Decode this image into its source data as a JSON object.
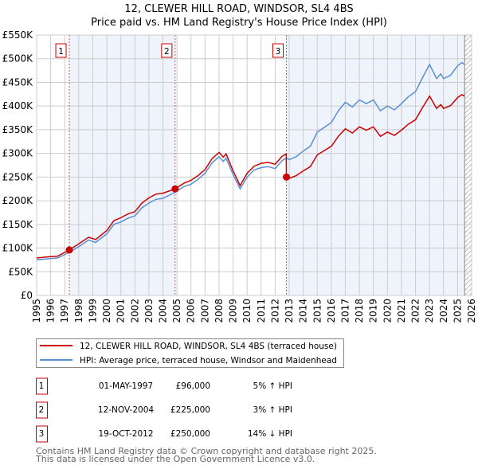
{
  "chart_data": {
    "type": "line",
    "title": "12, CLEWER HILL ROAD, WINDSOR, SL4 4BS",
    "subtitle": "Price paid vs. HM Land Registry's House Price Index (HPI)",
    "xlabel": "",
    "ylabel": "",
    "xlim": [
      1995,
      2026
    ],
    "ylim": [
      0,
      550000
    ],
    "grid": true,
    "y_ticks": [
      0,
      50000,
      100000,
      150000,
      200000,
      250000,
      300000,
      350000,
      400000,
      450000,
      500000,
      550000
    ],
    "y_tick_labels": [
      "£0",
      "£50K",
      "£100K",
      "£150K",
      "£200K",
      "£250K",
      "£300K",
      "£350K",
      "£400K",
      "£450K",
      "£500K",
      "£550K"
    ],
    "x_ticks": [
      1995,
      1996,
      1997,
      1998,
      1999,
      2000,
      2001,
      2002,
      2003,
      2004,
      2005,
      2006,
      2007,
      2008,
      2009,
      2010,
      2011,
      2012,
      2013,
      2014,
      2015,
      2016,
      2017,
      2018,
      2019,
      2020,
      2021,
      2022,
      2023,
      2024,
      2025,
      2026
    ],
    "x_tick_labels": [
      "1995",
      "1996",
      "1997",
      "1998",
      "1999",
      "2000",
      "2001",
      "2002",
      "2003",
      "2004",
      "2005",
      "2006",
      "2007",
      "2008",
      "2009",
      "2010",
      "2011",
      "2012",
      "2013",
      "2014",
      "2015",
      "2016",
      "2017",
      "2018",
      "2019",
      "2020",
      "2021",
      "2022",
      "2023",
      "2024",
      "2025",
      "2026"
    ],
    "x": [
      1995,
      1996,
      1996.5,
      1997.33,
      1998,
      1998.7,
      1999.2,
      2000,
      2000.5,
      2001,
      2001.5,
      2002,
      2002.5,
      2003,
      2003.5,
      2004,
      2004.87,
      2005.5,
      2006,
      2006.5,
      2007,
      2007.5,
      2008,
      2008.3,
      2008.5,
      2009,
      2009.5,
      2010,
      2010.5,
      2011,
      2011.5,
      2012,
      2012.5,
      2012.79,
      2012.8,
      2013,
      2013.5,
      2014,
      2014.5,
      2015,
      2015.5,
      2016,
      2016.5,
      2017,
      2017.5,
      2018,
      2018.5,
      2019,
      2019.5,
      2020,
      2020.5,
      2021,
      2021.5,
      2022,
      2022.5,
      2023,
      2023.5,
      2023.8,
      2024,
      2024.5,
      2025,
      2025.3,
      2025.5
    ],
    "series": [
      {
        "name": "12, CLEWER HILL ROAD, WINDSOR, SL4 4BS (terraced house)",
        "color": "#cc0000",
        "values": [
          79000,
          82000,
          83000,
          96000,
          109000,
          123000,
          118000,
          137000,
          158000,
          164000,
          172000,
          177000,
          195000,
          206000,
          214000,
          216000,
          225000,
          237000,
          243000,
          253000,
          266000,
          289000,
          302000,
          292000,
          299000,
          263000,
          232000,
          258000,
          273000,
          279000,
          281000,
          277000,
          294000,
          299000,
          250000,
          247000,
          253000,
          263000,
          272000,
          297000,
          306000,
          315000,
          336000,
          352000,
          343000,
          356000,
          349000,
          356000,
          336000,
          345000,
          338000,
          349000,
          362000,
          371000,
          397000,
          421000,
          395000,
          403000,
          395000,
          401000,
          418000,
          424000,
          421000
        ]
      },
      {
        "name": "HPI: Average price, terraced house, Windsor and Maidenhead",
        "color": "#5b8fd4",
        "values": [
          75000,
          78000,
          79000,
          91000,
          103000,
          117000,
          112000,
          130000,
          150000,
          155000,
          163000,
          168000,
          185000,
          195000,
          203000,
          205000,
          218000,
          230000,
          235000,
          245000,
          258000,
          280000,
          293000,
          283000,
          290000,
          255000,
          225000,
          250000,
          265000,
          270000,
          272000,
          268000,
          285000,
          290000,
          290000,
          287000,
          293000,
          305000,
          315000,
          345000,
          355000,
          365000,
          390000,
          408000,
          398000,
          413000,
          405000,
          413000,
          390000,
          400000,
          392000,
          405000,
          420000,
          430000,
          460000,
          488000,
          458000,
          468000,
          458000,
          465000,
          485000,
          492000,
          488000
        ]
      }
    ],
    "sales": [
      {
        "label": "1",
        "x": 1997.33,
        "value": 96000,
        "date": "01-MAY-1997",
        "price": "£96,000",
        "delta": "5% ↑ HPI"
      },
      {
        "label": "2",
        "x": 2004.87,
        "value": 225000,
        "date": "12-NOV-2004",
        "price": "£225,000",
        "delta": "3% ↑ HPI"
      },
      {
        "label": "3",
        "x": 2012.8,
        "value": 250000,
        "date": "19-OCT-2012",
        "price": "£250,000",
        "delta": "14% ↓ HPI"
      }
    ],
    "data_end": 2025.5,
    "legend_placement": "below"
  },
  "footer": {
    "line1": "Contains HM Land Registry data © Crown copyright and database right 2025.",
    "line2": "This data is licensed under the Open Government Licence v3.0."
  }
}
